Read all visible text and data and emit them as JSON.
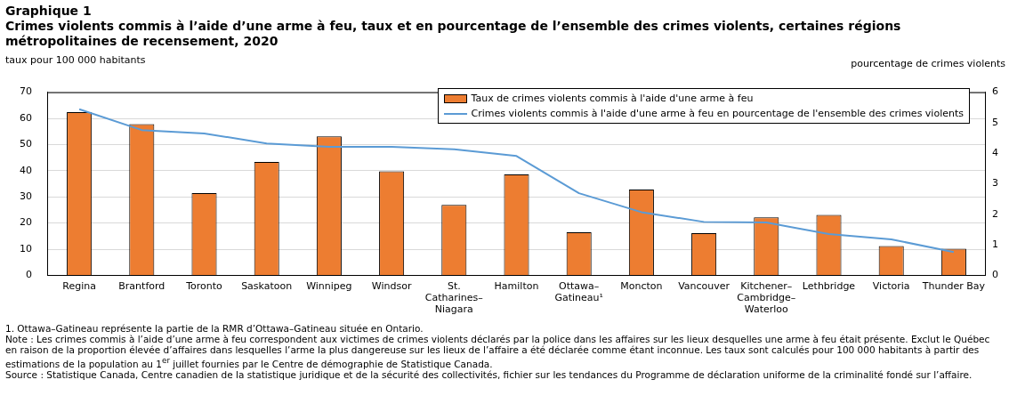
{
  "chart_data": {
    "type": "bar",
    "title": "Graphique 1",
    "subtitle": "Crimes violents commis à l’aide d’une arme à feu, taux et en pourcentage de l’ensemble des crimes violents, certaines régions métropolitaines de recensement, 2020",
    "ylabel": "taux pour 100 000 habitants",
    "y2label": "pourcentage de crimes violents",
    "categories": [
      "Regina",
      "Brantford",
      "Toronto",
      "Saskatoon",
      "Winnipeg",
      "Windsor",
      "St.\nCatharines–\nNiagara",
      "Hamilton",
      "Ottawa–\nGatineau¹",
      "Moncton",
      "Vancouver",
      "Kitchener–\nCambridge–\nWaterloo",
      "Lethbridge",
      "Victoria",
      "Thunder Bay"
    ],
    "series": [
      {
        "name": "Taux de crimes violents commis à l'aide d'une arme à feu",
        "color": "#ed7d31",
        "values": [
          62.4,
          57.8,
          31.4,
          43.3,
          53.1,
          39.8,
          26.9,
          38.6,
          16.5,
          32.8,
          16.1,
          22.2,
          23.1,
          11.2,
          10.2
        ]
      },
      {
        "name": "Crimes violents commis à l'aide d'une arme à feu en pourcentage de l'ensemble des crimes violents",
        "type": "line",
        "axis": "y2",
        "color": "#5b9bd5",
        "values": [
          5.44,
          4.76,
          4.65,
          4.32,
          4.21,
          4.21,
          4.13,
          3.91,
          2.69,
          2.07,
          1.75,
          1.73,
          1.35,
          1.18,
          0.76
        ]
      }
    ],
    "ylim": [
      0,
      70
    ],
    "yticks": [
      0,
      10,
      20,
      30,
      40,
      50,
      60,
      70
    ],
    "y2lim": [
      0,
      6
    ],
    "y2ticks": [
      0,
      1,
      2,
      3,
      4,
      5,
      6
    ],
    "grid": "y",
    "legend": "top right",
    "marker": "none",
    "line_style": "solid",
    "annotations": [
      "1. Ottawa–Gatineau représente la partie de la RMR d’Ottawa–Gatineau située en Ontario.",
      "Note : Les crimes commis à l’aide d’une arme à feu correspondent aux victimes de crimes violents déclarés par la police dans les affaires sur les lieux desquelles une arme à feu était présente. Exclut le Québec en raison de la proportion élevée d’affaires dans lesquelles l’arme la plus dangereuse sur les lieux de l’affaire a été déclarée comme étant inconnue. Les taux sont calculés pour 100 000 habitants à partir des estimations de la population au 1$^{er}$ juillet fournies par le Centre de démographie de Statistique Canada.",
      "Source : Statistique Canada, Centre canadien de la statistique juridique et de la sécurité des collectivités, fichier sur les tendances du Programme de déclaration uniforme de la criminalité fondé sur l’affaire."
    ]
  }
}
